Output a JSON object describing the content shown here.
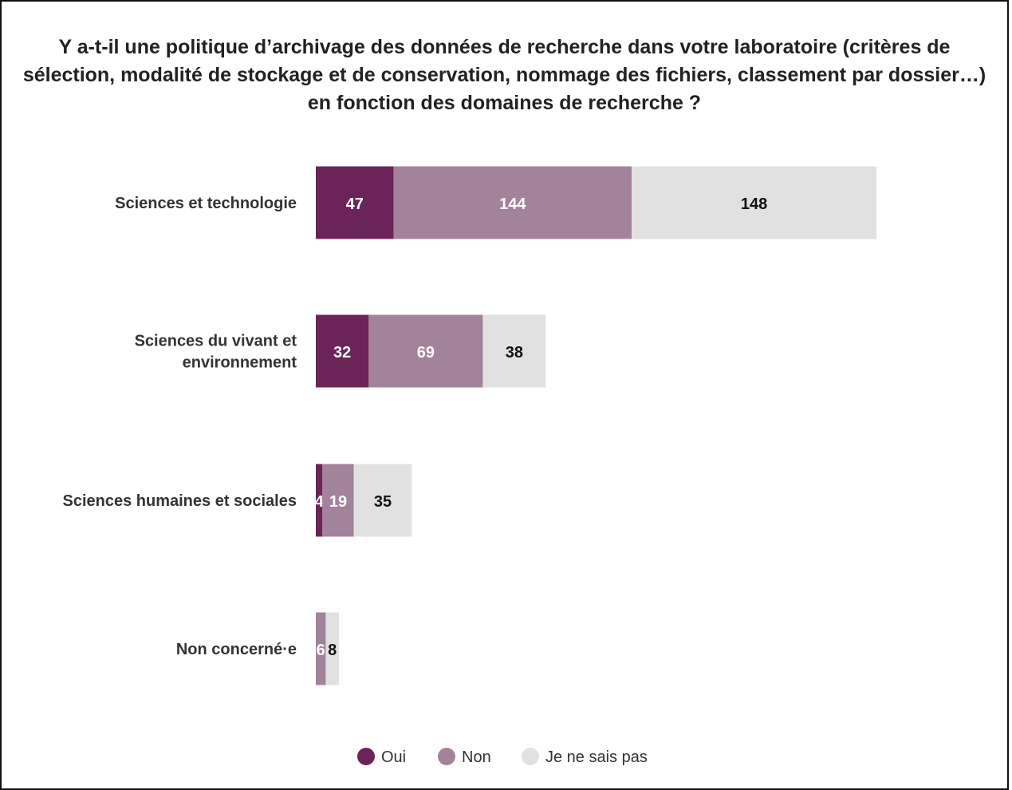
{
  "chart_data": {
    "type": "bar",
    "orientation": "horizontal",
    "stacked": true,
    "title": "Y a-t-il une politique d’archivage des données de recherche dans votre laboratoire (critères de sélection, modalité de stockage et de conservation, nommage des fichiers, classement par dossier…) en fonction des domaines de recherche ?",
    "categories": [
      [
        "Sciences et technologie"
      ],
      [
        "Sciences du vivant et",
        "environnement"
      ],
      [
        "Sciences humaines et sociales"
      ],
      [
        "Non concerné·e"
      ]
    ],
    "series": [
      {
        "name": "Oui",
        "color": "#6a2457",
        "label_color": "#ffffff",
        "values": [
          47,
          32,
          4,
          0
        ]
      },
      {
        "name": "Non",
        "color": "#a3829b",
        "label_color": "#ffffff",
        "values": [
          144,
          69,
          19,
          6
        ]
      },
      {
        "name": "Je ne sais pas",
        "color": "#e1e1e1",
        "label_color": "#111111",
        "values": [
          148,
          38,
          35,
          8
        ]
      }
    ],
    "legend_position": "bottom",
    "grid": false,
    "xlim": [
      0,
      339
    ]
  }
}
